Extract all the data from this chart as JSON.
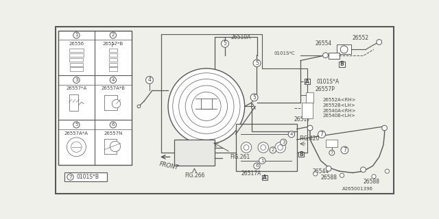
{
  "bg_color": "#f0f0eb",
  "diagram_color": "#555555",
  "text_color": "#444444",
  "grid_items": [
    {
      "num": "1",
      "part": "26556",
      "row": 0,
      "col": 0
    },
    {
      "num": "2",
      "part": "26557*B",
      "row": 0,
      "col": 1
    },
    {
      "num": "3",
      "part": "26557*A",
      "row": 1,
      "col": 0
    },
    {
      "num": "4",
      "part": "26557A*B",
      "row": 1,
      "col": 1
    },
    {
      "num": "5",
      "part": "26557A*A",
      "row": 2,
      "col": 0
    },
    {
      "num": "6",
      "part": "26557N",
      "row": 2,
      "col": 1
    }
  ],
  "legend_num": "7",
  "legend_part": "0101S*B",
  "pipe_color": "#555555",
  "white": "#ffffff"
}
